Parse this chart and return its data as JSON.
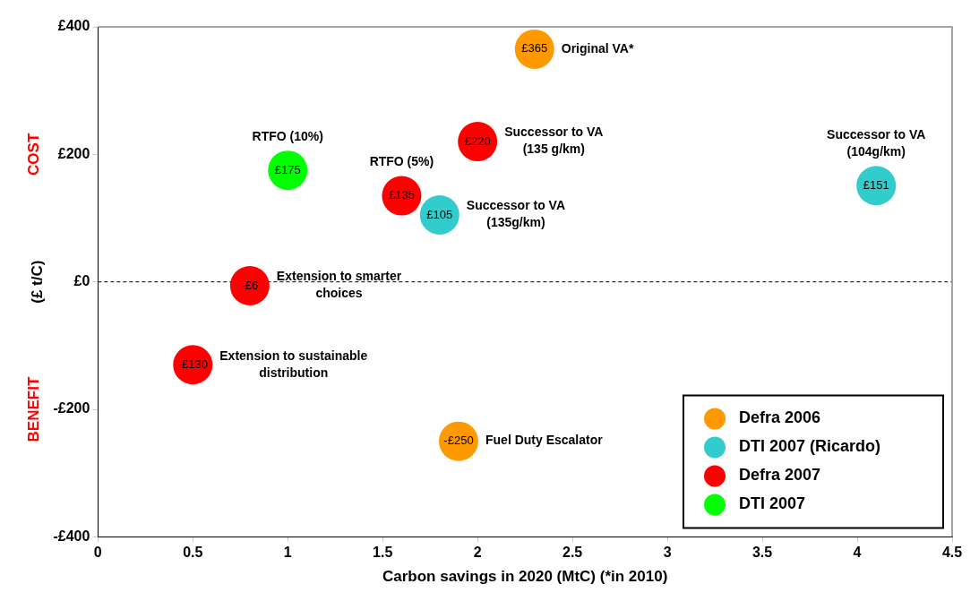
{
  "chart_data": {
    "type": "scatter",
    "xlabel": "Carbon savings in 2020 (MtC) (*in 2010)",
    "ylabel": "(£ t/C)",
    "xlim": [
      0,
      4.5
    ],
    "xticks": [
      0,
      0.5,
      1,
      1.5,
      2,
      2.5,
      3,
      3.5,
      4,
      4.5
    ],
    "ylim": [
      -400,
      400
    ],
    "yticks": [
      {
        "value": -400,
        "label": "-£400"
      },
      {
        "value": -200,
        "label": "-£200"
      },
      {
        "value": 0,
        "label": "£0"
      },
      {
        "value": 200,
        "label": "£200"
      },
      {
        "value": 400,
        "label": "£400"
      }
    ],
    "marker": "circle",
    "legend": "bottom right",
    "series": [
      {
        "name": "Defra 2006",
        "color": "#ff9900",
        "x": [
          2.3,
          1.9
        ],
        "values": [
          365,
          -250
        ],
        "value_labels": [
          "£365",
          "-£250"
        ]
      },
      {
        "name": "DTI 2007 (Ricardo)",
        "color": "#33cccc",
        "x": [
          1.8,
          4.1
        ],
        "values": [
          105,
          151
        ],
        "value_labels": [
          "£105",
          "£151"
        ]
      },
      {
        "name": "Defra 2007",
        "color": "#ff0000",
        "x": [
          2.0,
          1.6,
          0.8,
          0.5
        ],
        "values": [
          220,
          135,
          -6,
          -130
        ],
        "value_labels": [
          "£220",
          "£135",
          "-£6",
          "-£130"
        ]
      },
      {
        "name": "DTI 2007",
        "color": "#00ff00",
        "x": [
          1.0
        ],
        "values": [
          175
        ],
        "value_labels": [
          "£175"
        ]
      }
    ],
    "ref_lines": [
      {
        "axis": "y",
        "value": 0,
        "line_style": "dashed",
        "color": "#000000"
      }
    ],
    "annotations": [
      {
        "text": "Original VA*",
        "x": 2.3,
        "y": 365
      },
      {
        "text": "Successor to VA\n(135 g/km)",
        "x": 2.0,
        "y": 220
      },
      {
        "text": "RTFO (10%)",
        "x": 1.0,
        "y": 175
      },
      {
        "text": "RTFO (5%)",
        "x": 1.6,
        "y": 135
      },
      {
        "text": "Successor to VA\n(135g/km)",
        "x": 1.8,
        "y": 105
      },
      {
        "text": "Successor to VA\n(104g/km)",
        "x": 4.1,
        "y": 151
      },
      {
        "text": "Extension to smarter\nchoices",
        "x": 0.8,
        "y": -6
      },
      {
        "text": "Extension to sustainable\ndistribution",
        "x": 0.5,
        "y": -130
      },
      {
        "text": "Fuel Duty Escalator",
        "x": 1.9,
        "y": -250
      },
      "COST",
      "BENEFIT"
    ]
  }
}
